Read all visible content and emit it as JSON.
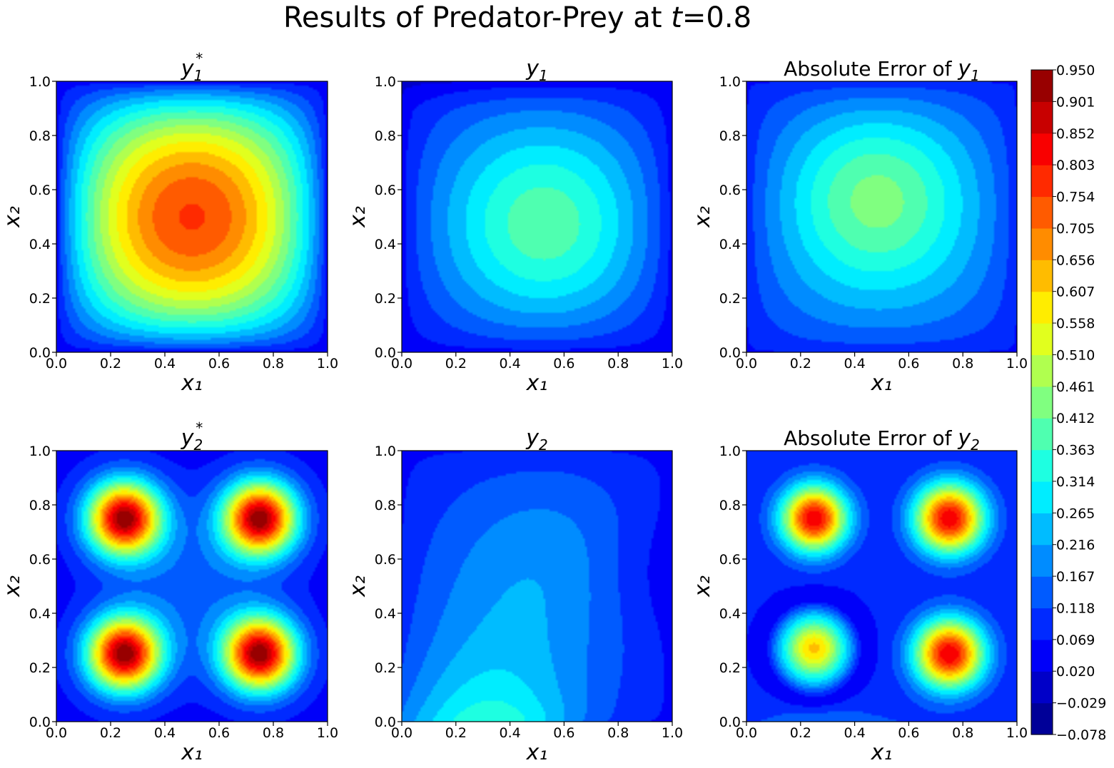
{
  "figure": {
    "title_prefix": "Results of Predator-Prey at ",
    "title_var": "t",
    "title_suffix": "=0.8"
  },
  "chart_data": [
    {
      "type": "heatmap",
      "title": "y₁*",
      "title_base": "y",
      "title_sub": "1",
      "title_sup": "*",
      "title_pre": "",
      "xlabel": "x₁",
      "ylabel": "x₂",
      "xlim": [
        0,
        1
      ],
      "ylim": [
        0,
        1
      ],
      "xticks": [
        "0.0",
        "0.2",
        "0.4",
        "0.6",
        "0.8",
        "1.0"
      ],
      "yticks": [
        "0.0",
        "0.2",
        "0.4",
        "0.6",
        "0.8",
        "1.0"
      ],
      "field": "peak at (0.5, 0.5) ≈ 0.76, decaying smoothly to ≈ 0.05 at the boundary",
      "peak_value": 0.76,
      "peak_at": [
        0.5,
        0.5
      ]
    },
    {
      "type": "heatmap",
      "title": "y₁",
      "title_base": "y",
      "title_sub": "1",
      "title_sup": "",
      "title_pre": "",
      "xlabel": "x₁",
      "ylabel": "x₂",
      "xlim": [
        0,
        1
      ],
      "ylim": [
        0,
        1
      ],
      "xticks": [
        "0.0",
        "0.2",
        "0.4",
        "0.6",
        "0.8",
        "1.0"
      ],
      "yticks": [
        "0.0",
        "0.2",
        "0.4",
        "0.6",
        "0.8",
        "1.0"
      ],
      "field": "broad maximum ≈ 0.40 near (0.55, 0.45), near 0.05 at edges, darkest near top edge",
      "peak_value": 0.4,
      "peak_at": [
        0.55,
        0.45
      ]
    },
    {
      "type": "heatmap",
      "title": "Absolute Error of y₁",
      "title_base": "y",
      "title_sub": "1",
      "title_sup": "",
      "title_pre": "Absolute Error of ",
      "xlabel": "x₁",
      "ylabel": "x₂",
      "xlim": [
        0,
        1
      ],
      "ylim": [
        0,
        1
      ],
      "xticks": [
        "0.0",
        "0.2",
        "0.4",
        "0.6",
        "0.8",
        "1.0"
      ],
      "yticks": [
        "0.0",
        "0.2",
        "0.4",
        "0.6",
        "0.8",
        "1.0"
      ],
      "field": "maximum ≈ 0.44 near (0.47, 0.60), near 0.07 at edges",
      "peak_value": 0.44,
      "peak_at": [
        0.47,
        0.6
      ]
    },
    {
      "type": "heatmap",
      "title": "y₂*",
      "title_base": "y",
      "title_sub": "2",
      "title_sup": "*",
      "title_pre": "",
      "xlabel": "x₁",
      "ylabel": "x₂",
      "xlim": [
        0,
        1
      ],
      "ylim": [
        0,
        1
      ],
      "xticks": [
        "0.0",
        "0.2",
        "0.4",
        "0.6",
        "0.8",
        "1.0"
      ],
      "yticks": [
        "0.0",
        "0.2",
        "0.4",
        "0.6",
        "0.8",
        "1.0"
      ],
      "field": "four peaks ≈ 0.92 at (0.25,0.25), (0.75,0.25), (0.25,0.75), (0.75,0.75)",
      "peak_value": 0.92
    },
    {
      "type": "heatmap",
      "title": "y₂",
      "title_base": "y",
      "title_sub": "2",
      "title_sup": "",
      "title_pre": "",
      "xlabel": "x₁",
      "ylabel": "x₂",
      "xlim": [
        0,
        1
      ],
      "ylim": [
        0,
        1
      ],
      "xticks": [
        "0.0",
        "0.2",
        "0.4",
        "0.6",
        "0.8",
        "1.0"
      ],
      "yticks": [
        "0.0",
        "0.2",
        "0.4",
        "0.6",
        "0.8",
        "1.0"
      ],
      "field": "low values ≈ 0.05–0.15, highest ≈ 0.42 near bottom around x₁≈0.3",
      "peak_value": 0.42,
      "peak_at": [
        0.32,
        0.02
      ]
    },
    {
      "type": "heatmap",
      "title": "Absolute Error of y₂",
      "title_base": "y",
      "title_sub": "2",
      "title_sup": "",
      "title_pre": "Absolute Error of ",
      "xlabel": "x₁",
      "ylabel": "x₂",
      "xlim": [
        0,
        1
      ],
      "ylim": [
        0,
        1
      ],
      "xticks": [
        "0.0",
        "0.2",
        "0.4",
        "0.6",
        "0.8",
        "1.0"
      ],
      "yticks": [
        "0.0",
        "0.2",
        "0.4",
        "0.6",
        "0.8",
        "1.0"
      ],
      "field": "four peaks ≈ 0.85 (bottom-left weaker ≈ 0.62), dark ring around bottom-left blob",
      "peak_value": 0.85
    },
    {
      "type": "colorbar",
      "colormap": "jet",
      "vmin": -0.078,
      "vmax": 0.95,
      "ticks": [
        "−0.078",
        "−0.029",
        "0.020",
        "0.069",
        "0.118",
        "0.167",
        "0.216",
        "0.265",
        "0.314",
        "0.363",
        "0.412",
        "0.461",
        "0.510",
        "0.558",
        "0.607",
        "0.656",
        "0.705",
        "0.754",
        "0.803",
        "0.852",
        "0.901",
        "0.950"
      ]
    }
  ]
}
